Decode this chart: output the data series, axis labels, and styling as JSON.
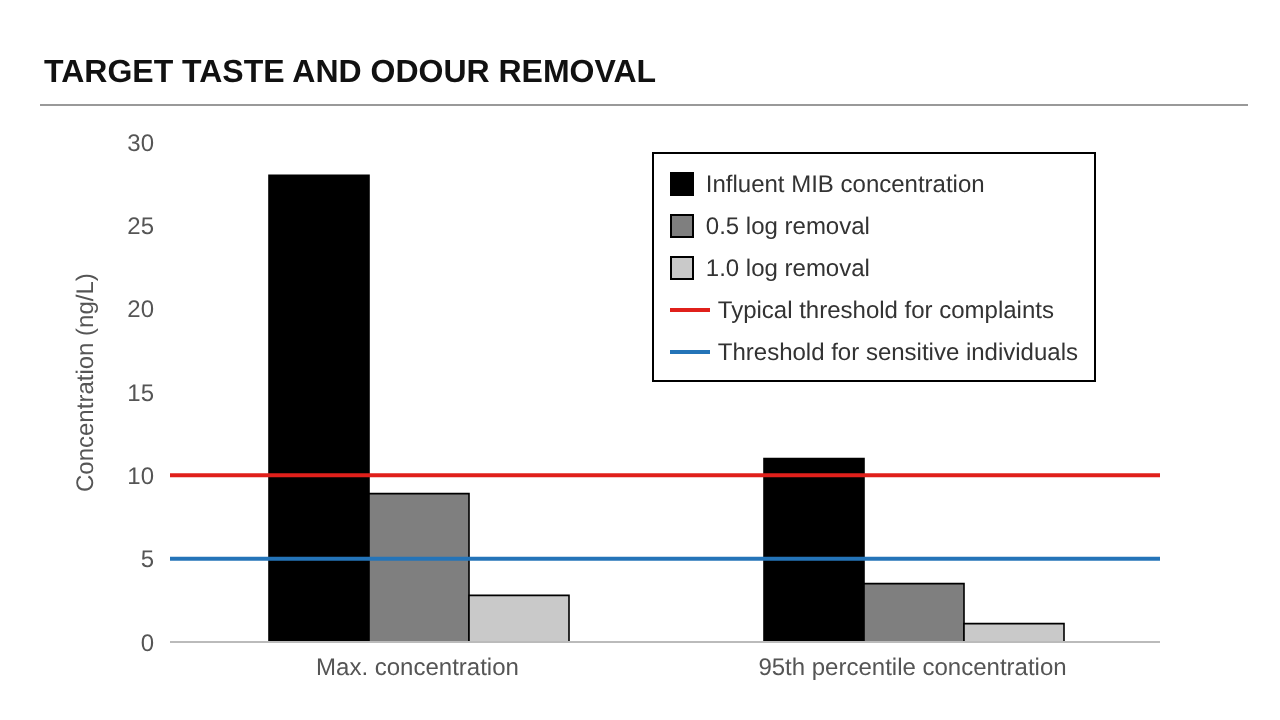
{
  "chart_data": {
    "type": "bar",
    "title": "TARGET TASTE AND ODOUR REMOVAL",
    "ylabel": "Concentration (ng/L)",
    "categories": [
      "Max. concentration",
      "95th percentile concentration"
    ],
    "series": [
      {
        "name": "Influent MIB concentration",
        "color": "#000000",
        "values": [
          28,
          11
        ]
      },
      {
        "name": "0.5 log removal",
        "color": "#7f7f7f",
        "values": [
          8.9,
          3.5
        ]
      },
      {
        "name": "1.0 log removal",
        "color": "#c9c9c9",
        "values": [
          2.8,
          1.1
        ]
      }
    ],
    "ref_lines": [
      {
        "axis": "y",
        "value": 10,
        "label": "Typical threshold for complaints",
        "color": "#e0201b"
      },
      {
        "axis": "y",
        "value": 5,
        "label": "Threshold for sensitive individuals",
        "color": "#2474b8"
      }
    ],
    "ylim": [
      0,
      30
    ],
    "yticks": [
      0,
      5,
      10,
      15,
      20,
      25,
      30
    ],
    "legend": "top right"
  }
}
